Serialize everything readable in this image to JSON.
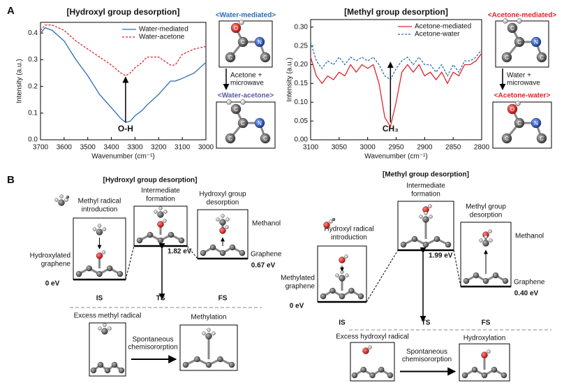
{
  "panel_a_label": "A",
  "panel_b_label": "B",
  "chart_data": [
    {
      "type": "line",
      "title": "[Hydroxyl group desorption]",
      "x_label": "Wavenumber (cm⁻¹)",
      "y_label": "Intensity (a.u.)",
      "x": [
        3700,
        3680,
        3650,
        3600,
        3550,
        3500,
        3450,
        3400,
        3360,
        3340,
        3320,
        3300,
        3270,
        3250,
        3200,
        3150,
        3130,
        3100,
        3050,
        3000
      ],
      "series": [
        {
          "name": "Water-mediated",
          "color": "#2a6db5",
          "style": "solid",
          "values": [
            0.4,
            0.42,
            0.41,
            0.37,
            0.3,
            0.24,
            0.17,
            0.12,
            0.08,
            0.065,
            0.07,
            0.09,
            0.11,
            0.13,
            0.17,
            0.22,
            0.22,
            0.23,
            0.25,
            0.29
          ]
        },
        {
          "name": "Water-acetone",
          "color": "#e0242a",
          "style": "dashed",
          "values": [
            0.41,
            0.43,
            0.43,
            0.41,
            0.37,
            0.34,
            0.31,
            0.28,
            0.25,
            0.24,
            0.25,
            0.27,
            0.29,
            0.31,
            0.31,
            0.28,
            0.28,
            0.32,
            0.34,
            0.35
          ]
        }
      ],
      "annotation": "O-H",
      "xlim": [
        3700,
        3000
      ],
      "xticks": [
        3700,
        3600,
        3500,
        3400,
        3300,
        3200,
        3100,
        3000
      ],
      "ylim": [
        0,
        0.44
      ],
      "yticks": [
        {
          "value": 0,
          "label": "0.0"
        },
        0.1,
        0.2,
        0.3,
        0.4
      ],
      "legend": "upper right"
    },
    {
      "type": "line",
      "title": "[Methyl group desorption]",
      "x_label": "Wavenumber (cm⁻¹)",
      "y_label": "Intensity (a.u.)",
      "x": [
        3100,
        3090,
        3080,
        3070,
        3060,
        3050,
        3040,
        3030,
        3020,
        3010,
        3000,
        2990,
        2980,
        2970,
        2960,
        2950,
        2940,
        2930,
        2920,
        2910,
        2900,
        2890,
        2880,
        2870,
        2860,
        2850,
        2840,
        2830,
        2820,
        2810,
        2800
      ],
      "series": [
        {
          "name": "Acetone-mediated",
          "color": "#e0242a",
          "style": "solid",
          "values": [
            0.22,
            0.17,
            0.15,
            0.17,
            0.16,
            0.18,
            0.17,
            0.2,
            0.18,
            0.2,
            0.19,
            0.2,
            0.15,
            0.06,
            0.035,
            0.1,
            0.18,
            0.2,
            0.18,
            0.2,
            0.17,
            0.18,
            0.16,
            0.18,
            0.15,
            0.18,
            0.17,
            0.2,
            0.2,
            0.21,
            0.23
          ]
        },
        {
          "name": "Acetone-water",
          "color": "#2a6db5",
          "style": "dashed",
          "values": [
            0.26,
            0.21,
            0.19,
            0.21,
            0.2,
            0.22,
            0.2,
            0.22,
            0.21,
            0.22,
            0.21,
            0.22,
            0.2,
            0.17,
            0.16,
            0.19,
            0.21,
            0.22,
            0.2,
            0.22,
            0.2,
            0.2,
            0.18,
            0.2,
            0.17,
            0.2,
            0.18,
            0.21,
            0.21,
            0.22,
            0.24
          ]
        }
      ],
      "annotation": "CH₃",
      "xlim": [
        3100,
        2800
      ],
      "xticks": [
        3100,
        3050,
        3000,
        2950,
        2900,
        2850,
        2800
      ],
      "ylim": [
        0,
        0.32
      ],
      "yticks": [
        {
          "value": 0,
          "label": "0.00"
        },
        {
          "value": 0.05,
          "label": "0.05"
        },
        {
          "value": 0.1,
          "label": "0.10"
        },
        {
          "value": 0.15,
          "label": "0.15"
        },
        {
          "value": 0.2,
          "label": "0.20"
        },
        {
          "value": 0.25,
          "label": "0.25"
        },
        {
          "value": 0.3,
          "label": "0.30"
        }
      ],
      "legend": "upper right"
    }
  ],
  "structures_a": {
    "left": {
      "top": "<Water-mediated>",
      "top_atoms": [
        "O",
        "C",
        "N",
        "C",
        "C"
      ],
      "step": [
        "Acetone +",
        "microwave"
      ],
      "bottom": "<Water-acetone>",
      "bottom_atoms": [
        "C",
        "C",
        "N",
        "C",
        "C"
      ]
    },
    "right": {
      "top": "<Acetone-mediated>",
      "top_atoms": [
        "C",
        "C",
        "N",
        "C",
        "C"
      ],
      "step": [
        "Water +",
        "microwave"
      ],
      "bottom": "<Acetone-water>",
      "bottom_atoms": [
        "O",
        "C",
        "N",
        "C",
        "C"
      ]
    }
  },
  "panel_b": {
    "left": {
      "title": "[Hydroxyl group desorption]",
      "is_text": [
        "Methyl radical",
        "introduction"
      ],
      "ts_text": [
        "Intermediate",
        "formation"
      ],
      "fs_text": [
        "Hydroxyl group",
        "desorption"
      ],
      "start": [
        "Hydroxylated",
        "graphene"
      ],
      "product": "Methanol",
      "surface": "Graphene",
      "e_is": "0 eV",
      "e_ts": "1.82 eV",
      "e_fs": "0.67 eV",
      "states": [
        "IS",
        "TS",
        "FS"
      ],
      "excess": "Excess methyl radical",
      "process": [
        "Spontaneous",
        "chemisororption"
      ],
      "result": "Methylation"
    },
    "right": {
      "title": "[Methyl group desorption]",
      "is_text": [
        "Hydroxyl radical",
        "introduction"
      ],
      "ts_text": [
        "Intermediate",
        "formation"
      ],
      "fs_text": [
        "Methyl group",
        "desorption"
      ],
      "start": [
        "Methylated",
        "graphene"
      ],
      "product": "Methanol",
      "surface": "Graphene",
      "e_is": "0 eV",
      "e_ts": "1.99 eV",
      "e_fs": "0.40 eV",
      "states": [
        "IS",
        "TS",
        "FS"
      ],
      "excess": "Excess hydroxyl radical",
      "process": [
        "Spontaneous",
        "chemisororption"
      ],
      "result": "Hydroxylation"
    }
  }
}
